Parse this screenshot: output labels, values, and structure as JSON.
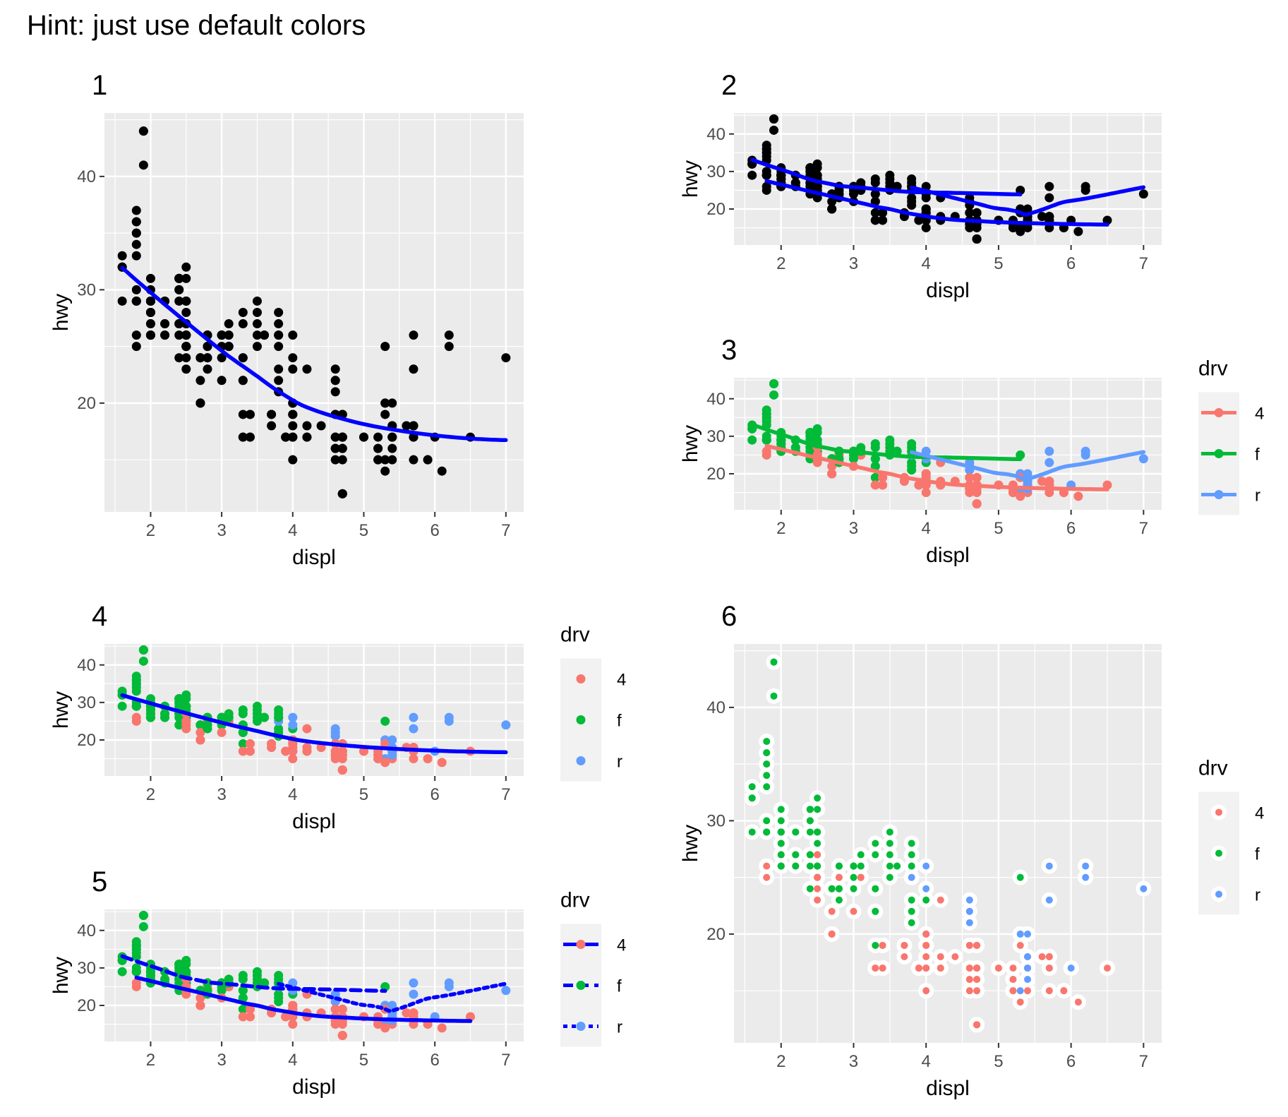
{
  "hint": "Hint: just use default colors",
  "colors": {
    "panel_bg": "#EBEBEB",
    "grid": "#FFFFFF",
    "point_black": "#000000",
    "smooth_blue": "#0000FF",
    "drv_4": "#F8766D",
    "drv_f": "#00BA38",
    "drv_r": "#619CFF",
    "axis_text": "#4D4D4D",
    "legend_key_bg": "#F2F2F2"
  },
  "chart_data": [
    {
      "id": "1",
      "type": "scatter",
      "title": "1",
      "xlabel": "displ",
      "ylabel": "hwy",
      "xlim": [
        1.35,
        7.25
      ],
      "ylim": [
        10.4,
        45.6
      ],
      "xticks": [
        2,
        3,
        4,
        5,
        6,
        7
      ],
      "yticks": [
        20,
        30,
        40
      ],
      "point_color": "group",
      "groups": "none",
      "smooth": "single",
      "legend": null
    },
    {
      "id": "2",
      "type": "scatter",
      "title": "2",
      "xlabel": "displ",
      "ylabel": "hwy",
      "xlim": [
        1.35,
        7.25
      ],
      "ylim": [
        10.4,
        45.6
      ],
      "xticks": [
        2,
        3,
        4,
        5,
        6,
        7
      ],
      "yticks": [
        20,
        30,
        40
      ],
      "point_color": "black",
      "smooth": "by_drv_blue",
      "legend": null
    },
    {
      "id": "3",
      "type": "scatter",
      "title": "3",
      "xlabel": "displ",
      "ylabel": "hwy",
      "xlim": [
        1.35,
        7.25
      ],
      "ylim": [
        10.4,
        45.6
      ],
      "xticks": [
        2,
        3,
        4,
        5,
        6,
        7
      ],
      "yticks": [
        20,
        30,
        40
      ],
      "point_color": "drv",
      "smooth": "by_drv_color",
      "legend": {
        "title": "drv",
        "keys": [
          "4",
          "f",
          "r"
        ],
        "style": "point_line"
      }
    },
    {
      "id": "4",
      "type": "scatter",
      "title": "4",
      "xlabel": "displ",
      "ylabel": "hwy",
      "xlim": [
        1.35,
        7.25
      ],
      "ylim": [
        10.4,
        45.6
      ],
      "xticks": [
        2,
        3,
        4,
        5,
        6,
        7
      ],
      "yticks": [
        20,
        30,
        40
      ],
      "point_color": "drv",
      "smooth": "single",
      "legend": {
        "title": "drv",
        "keys": [
          "4",
          "f",
          "r"
        ],
        "style": "point"
      }
    },
    {
      "id": "5",
      "type": "scatter",
      "title": "5",
      "xlabel": "displ",
      "ylabel": "hwy",
      "xlim": [
        1.35,
        7.25
      ],
      "ylim": [
        10.4,
        45.6
      ],
      "xticks": [
        2,
        3,
        4,
        5,
        6,
        7
      ],
      "yticks": [
        20,
        30,
        40
      ],
      "point_color": "drv",
      "smooth": "by_drv_linetype",
      "legend": {
        "title": "drv",
        "keys": [
          "4",
          "f",
          "r"
        ],
        "style": "linetype"
      }
    },
    {
      "id": "6",
      "type": "scatter",
      "title": "6",
      "xlabel": "displ",
      "ylabel": "hwy",
      "xlim": [
        1.35,
        7.25
      ],
      "ylim": [
        10.4,
        45.6
      ],
      "xticks": [
        2,
        3,
        4,
        5,
        6,
        7
      ],
      "yticks": [
        20,
        30,
        40
      ],
      "point_color": "drv_white_ring",
      "smooth": "none",
      "legend": {
        "title": "drv",
        "keys": [
          "4",
          "f",
          "r"
        ],
        "style": "ring"
      }
    }
  ],
  "points": [
    {
      "x": 1.8,
      "y": 29,
      "drv": "f"
    },
    {
      "x": 1.8,
      "y": 29,
      "drv": "f"
    },
    {
      "x": 2.0,
      "y": 31,
      "drv": "f"
    },
    {
      "x": 2.0,
      "y": 30,
      "drv": "f"
    },
    {
      "x": 2.8,
      "y": 26,
      "drv": "f"
    },
    {
      "x": 2.8,
      "y": 26,
      "drv": "f"
    },
    {
      "x": 3.1,
      "y": 27,
      "drv": "f"
    },
    {
      "x": 1.8,
      "y": 26,
      "drv": "4"
    },
    {
      "x": 1.8,
      "y": 25,
      "drv": "4"
    },
    {
      "x": 2.0,
      "y": 28,
      "drv": "4"
    },
    {
      "x": 2.0,
      "y": 27,
      "drv": "4"
    },
    {
      "x": 2.8,
      "y": 25,
      "drv": "4"
    },
    {
      "x": 2.8,
      "y": 25,
      "drv": "4"
    },
    {
      "x": 3.1,
      "y": 25,
      "drv": "4"
    },
    {
      "x": 3.1,
      "y": 25,
      "drv": "4"
    },
    {
      "x": 2.8,
      "y": 24,
      "drv": "4"
    },
    {
      "x": 3.1,
      "y": 25,
      "drv": "4"
    },
    {
      "x": 4.2,
      "y": 23,
      "drv": "4"
    },
    {
      "x": 5.3,
      "y": 20,
      "drv": "r"
    },
    {
      "x": 5.3,
      "y": 15,
      "drv": "r"
    },
    {
      "x": 5.3,
      "y": 20,
      "drv": "r"
    },
    {
      "x": 5.7,
      "y": 17,
      "drv": "r"
    },
    {
      "x": 6.0,
      "y": 17,
      "drv": "r"
    },
    {
      "x": 5.7,
      "y": 26,
      "drv": "r"
    },
    {
      "x": 5.7,
      "y": 23,
      "drv": "r"
    },
    {
      "x": 6.2,
      "y": 26,
      "drv": "r"
    },
    {
      "x": 6.2,
      "y": 25,
      "drv": "r"
    },
    {
      "x": 7.0,
      "y": 24,
      "drv": "r"
    },
    {
      "x": 5.3,
      "y": 19,
      "drv": "4"
    },
    {
      "x": 5.3,
      "y": 14,
      "drv": "4"
    },
    {
      "x": 5.7,
      "y": 15,
      "drv": "4"
    },
    {
      "x": 6.5,
      "y": 17,
      "drv": "4"
    },
    {
      "x": 2.4,
      "y": 27,
      "drv": "f"
    },
    {
      "x": 2.4,
      "y": 30,
      "drv": "f"
    },
    {
      "x": 3.1,
      "y": 26,
      "drv": "f"
    },
    {
      "x": 3.5,
      "y": 29,
      "drv": "f"
    },
    {
      "x": 3.6,
      "y": 26,
      "drv": "f"
    },
    {
      "x": 2.4,
      "y": 24,
      "drv": "f"
    },
    {
      "x": 3.0,
      "y": 24,
      "drv": "f"
    },
    {
      "x": 3.3,
      "y": 22,
      "drv": "f"
    },
    {
      "x": 3.3,
      "y": 24,
      "drv": "f"
    },
    {
      "x": 3.3,
      "y": 24,
      "drv": "f"
    },
    {
      "x": 3.3,
      "y": 22,
      "drv": "f"
    },
    {
      "x": 3.3,
      "y": 19,
      "drv": "f"
    },
    {
      "x": 3.8,
      "y": 22,
      "drv": "f"
    },
    {
      "x": 3.8,
      "y": 21,
      "drv": "f"
    },
    {
      "x": 3.8,
      "y": 23,
      "drv": "f"
    },
    {
      "x": 4.0,
      "y": 23,
      "drv": "f"
    },
    {
      "x": 3.7,
      "y": 19,
      "drv": "4"
    },
    {
      "x": 3.7,
      "y": 18,
      "drv": "4"
    },
    {
      "x": 3.9,
      "y": 17,
      "drv": "4"
    },
    {
      "x": 3.9,
      "y": 17,
      "drv": "4"
    },
    {
      "x": 4.7,
      "y": 19,
      "drv": "4"
    },
    {
      "x": 4.7,
      "y": 19,
      "drv": "4"
    },
    {
      "x": 4.7,
      "y": 12,
      "drv": "4"
    },
    {
      "x": 5.2,
      "y": 17,
      "drv": "4"
    },
    {
      "x": 5.2,
      "y": 15,
      "drv": "4"
    },
    {
      "x": 3.9,
      "y": 17,
      "drv": "4"
    },
    {
      "x": 4.7,
      "y": 17,
      "drv": "4"
    },
    {
      "x": 4.7,
      "y": 12,
      "drv": "4"
    },
    {
      "x": 4.7,
      "y": 17,
      "drv": "4"
    },
    {
      "x": 5.2,
      "y": 16,
      "drv": "4"
    },
    {
      "x": 5.7,
      "y": 18,
      "drv": "4"
    },
    {
      "x": 5.9,
      "y": 15,
      "drv": "4"
    },
    {
      "x": 4.7,
      "y": 16,
      "drv": "4"
    },
    {
      "x": 4.7,
      "y": 12,
      "drv": "4"
    },
    {
      "x": 4.7,
      "y": 17,
      "drv": "4"
    },
    {
      "x": 4.7,
      "y": 17,
      "drv": "4"
    },
    {
      "x": 4.7,
      "y": 16,
      "drv": "4"
    },
    {
      "x": 4.7,
      "y": 12,
      "drv": "4"
    },
    {
      "x": 5.2,
      "y": 15,
      "drv": "4"
    },
    {
      "x": 5.2,
      "y": 16,
      "drv": "4"
    },
    {
      "x": 5.7,
      "y": 17,
      "drv": "4"
    },
    {
      "x": 5.9,
      "y": 15,
      "drv": "4"
    },
    {
      "x": 4.6,
      "y": 17,
      "drv": "4"
    },
    {
      "x": 5.4,
      "y": 17,
      "drv": "4"
    },
    {
      "x": 5.4,
      "y": 18,
      "drv": "4"
    },
    {
      "x": 4.0,
      "y": 17,
      "drv": "4"
    },
    {
      "x": 4.0,
      "y": 19,
      "drv": "4"
    },
    {
      "x": 4.0,
      "y": 17,
      "drv": "4"
    },
    {
      "x": 4.0,
      "y": 19,
      "drv": "4"
    },
    {
      "x": 4.6,
      "y": 19,
      "drv": "4"
    },
    {
      "x": 5.0,
      "y": 17,
      "drv": "4"
    },
    {
      "x": 4.2,
      "y": 17,
      "drv": "4"
    },
    {
      "x": 4.2,
      "y": 17,
      "drv": "4"
    },
    {
      "x": 4.6,
      "y": 16,
      "drv": "4"
    },
    {
      "x": 4.6,
      "y": 16,
      "drv": "4"
    },
    {
      "x": 4.6,
      "y": 17,
      "drv": "4"
    },
    {
      "x": 5.4,
      "y": 15,
      "drv": "4"
    },
    {
      "x": 5.4,
      "y": 17,
      "drv": "4"
    },
    {
      "x": 3.8,
      "y": 26,
      "drv": "r"
    },
    {
      "x": 3.8,
      "y": 25,
      "drv": "r"
    },
    {
      "x": 4.0,
      "y": 26,
      "drv": "r"
    },
    {
      "x": 4.0,
      "y": 24,
      "drv": "r"
    },
    {
      "x": 4.6,
      "y": 21,
      "drv": "r"
    },
    {
      "x": 4.6,
      "y": 22,
      "drv": "r"
    },
    {
      "x": 4.6,
      "y": 23,
      "drv": "r"
    },
    {
      "x": 4.6,
      "y": 22,
      "drv": "r"
    },
    {
      "x": 5.4,
      "y": 20,
      "drv": "r"
    },
    {
      "x": 1.6,
      "y": 33,
      "drv": "f"
    },
    {
      "x": 1.6,
      "y": 32,
      "drv": "f"
    },
    {
      "x": 1.6,
      "y": 32,
      "drv": "f"
    },
    {
      "x": 1.6,
      "y": 29,
      "drv": "f"
    },
    {
      "x": 1.6,
      "y": 32,
      "drv": "f"
    },
    {
      "x": 1.8,
      "y": 34,
      "drv": "f"
    },
    {
      "x": 1.8,
      "y": 36,
      "drv": "f"
    },
    {
      "x": 1.8,
      "y": 36,
      "drv": "f"
    },
    {
      "x": 2.0,
      "y": 29,
      "drv": "f"
    },
    {
      "x": 2.4,
      "y": 26,
      "drv": "f"
    },
    {
      "x": 2.4,
      "y": 27,
      "drv": "f"
    },
    {
      "x": 2.4,
      "y": 30,
      "drv": "f"
    },
    {
      "x": 2.4,
      "y": 31,
      "drv": "f"
    },
    {
      "x": 2.5,
      "y": 26,
      "drv": "f"
    },
    {
      "x": 2.5,
      "y": 26,
      "drv": "f"
    },
    {
      "x": 3.3,
      "y": 28,
      "drv": "f"
    },
    {
      "x": 2.0,
      "y": 26,
      "drv": "f"
    },
    {
      "x": 2.0,
      "y": 29,
      "drv": "f"
    },
    {
      "x": 2.0,
      "y": 28,
      "drv": "f"
    },
    {
      "x": 2.0,
      "y": 27,
      "drv": "f"
    },
    {
      "x": 2.7,
      "y": 24,
      "drv": "f"
    },
    {
      "x": 2.7,
      "y": 24,
      "drv": "f"
    },
    {
      "x": 2.7,
      "y": 24,
      "drv": "f"
    },
    {
      "x": 3.0,
      "y": 22,
      "drv": "4"
    },
    {
      "x": 3.7,
      "y": 19,
      "drv": "4"
    },
    {
      "x": 4.0,
      "y": 20,
      "drv": "4"
    },
    {
      "x": 4.7,
      "y": 17,
      "drv": "4"
    },
    {
      "x": 4.7,
      "y": 12,
      "drv": "4"
    },
    {
      "x": 4.7,
      "y": 19,
      "drv": "4"
    },
    {
      "x": 5.7,
      "y": 18,
      "drv": "4"
    },
    {
      "x": 6.1,
      "y": 14,
      "drv": "4"
    },
    {
      "x": 4.0,
      "y": 15,
      "drv": "4"
    },
    {
      "x": 4.2,
      "y": 18,
      "drv": "4"
    },
    {
      "x": 4.4,
      "y": 18,
      "drv": "4"
    },
    {
      "x": 4.6,
      "y": 15,
      "drv": "4"
    },
    {
      "x": 5.4,
      "y": 17,
      "drv": "r"
    },
    {
      "x": 5.4,
      "y": 16,
      "drv": "r"
    },
    {
      "x": 5.4,
      "y": 18,
      "drv": "r"
    },
    {
      "x": 4.0,
      "y": 17,
      "drv": "4"
    },
    {
      "x": 4.0,
      "y": 19,
      "drv": "4"
    },
    {
      "x": 4.6,
      "y": 19,
      "drv": "4"
    },
    {
      "x": 5.0,
      "y": 17,
      "drv": "4"
    },
    {
      "x": 2.4,
      "y": 29,
      "drv": "f"
    },
    {
      "x": 2.4,
      "y": 27,
      "drv": "f"
    },
    {
      "x": 2.5,
      "y": 31,
      "drv": "f"
    },
    {
      "x": 2.5,
      "y": 32,
      "drv": "f"
    },
    {
      "x": 3.5,
      "y": 27,
      "drv": "f"
    },
    {
      "x": 3.5,
      "y": 26,
      "drv": "f"
    },
    {
      "x": 3.0,
      "y": 26,
      "drv": "f"
    },
    {
      "x": 3.0,
      "y": 25,
      "drv": "f"
    },
    {
      "x": 3.5,
      "y": 25,
      "drv": "f"
    },
    {
      "x": 3.3,
      "y": 17,
      "drv": "4"
    },
    {
      "x": 3.3,
      "y": 17,
      "drv": "4"
    },
    {
      "x": 4.0,
      "y": 20,
      "drv": "4"
    },
    {
      "x": 5.6,
      "y": 18,
      "drv": "4"
    },
    {
      "x": 3.1,
      "y": 26,
      "drv": "f"
    },
    {
      "x": 3.8,
      "y": 26,
      "drv": "f"
    },
    {
      "x": 3.8,
      "y": 27,
      "drv": "f"
    },
    {
      "x": 3.8,
      "y": 28,
      "drv": "f"
    },
    {
      "x": 5.3,
      "y": 25,
      "drv": "f"
    },
    {
      "x": 2.5,
      "y": 25,
      "drv": "4"
    },
    {
      "x": 2.5,
      "y": 24,
      "drv": "4"
    },
    {
      "x": 2.5,
      "y": 27,
      "drv": "4"
    },
    {
      "x": 2.5,
      "y": 25,
      "drv": "4"
    },
    {
      "x": 2.5,
      "y": 26,
      "drv": "4"
    },
    {
      "x": 2.5,
      "y": 23,
      "drv": "4"
    },
    {
      "x": 2.2,
      "y": 26,
      "drv": "f"
    },
    {
      "x": 2.2,
      "y": 26,
      "drv": "f"
    },
    {
      "x": 2.5,
      "y": 26,
      "drv": "f"
    },
    {
      "x": 2.5,
      "y": 26,
      "drv": "f"
    },
    {
      "x": 2.5,
      "y": 25,
      "drv": "4"
    },
    {
      "x": 2.5,
      "y": 27,
      "drv": "4"
    },
    {
      "x": 2.5,
      "y": 25,
      "drv": "4"
    },
    {
      "x": 2.5,
      "y": 27,
      "drv": "4"
    },
    {
      "x": 2.7,
      "y": 20,
      "drv": "4"
    },
    {
      "x": 2.7,
      "y": 20,
      "drv": "4"
    },
    {
      "x": 3.4,
      "y": 19,
      "drv": "4"
    },
    {
      "x": 3.4,
      "y": 17,
      "drv": "4"
    },
    {
      "x": 4.0,
      "y": 20,
      "drv": "4"
    },
    {
      "x": 4.7,
      "y": 17,
      "drv": "4"
    },
    {
      "x": 2.2,
      "y": 29,
      "drv": "f"
    },
    {
      "x": 2.2,
      "y": 27,
      "drv": "f"
    },
    {
      "x": 2.4,
      "y": 31,
      "drv": "f"
    },
    {
      "x": 2.4,
      "y": 31,
      "drv": "f"
    },
    {
      "x": 3.0,
      "y": 26,
      "drv": "f"
    },
    {
      "x": 3.0,
      "y": 26,
      "drv": "f"
    },
    {
      "x": 3.5,
      "y": 28,
      "drv": "f"
    },
    {
      "x": 2.2,
      "y": 27,
      "drv": "f"
    },
    {
      "x": 2.2,
      "y": 29,
      "drv": "f"
    },
    {
      "x": 2.4,
      "y": 31,
      "drv": "f"
    },
    {
      "x": 2.4,
      "y": 31,
      "drv": "f"
    },
    {
      "x": 3.0,
      "y": 26,
      "drv": "f"
    },
    {
      "x": 3.0,
      "y": 26,
      "drv": "f"
    },
    {
      "x": 3.3,
      "y": 27,
      "drv": "f"
    },
    {
      "x": 1.8,
      "y": 30,
      "drv": "f"
    },
    {
      "x": 1.8,
      "y": 33,
      "drv": "f"
    },
    {
      "x": 1.8,
      "y": 35,
      "drv": "f"
    },
    {
      "x": 1.8,
      "y": 37,
      "drv": "f"
    },
    {
      "x": 1.8,
      "y": 35,
      "drv": "f"
    },
    {
      "x": 4.7,
      "y": 15,
      "drv": "4"
    },
    {
      "x": 5.7,
      "y": 18,
      "drv": "4"
    },
    {
      "x": 2.7,
      "y": 20,
      "drv": "4"
    },
    {
      "x": 2.7,
      "y": 20,
      "drv": "4"
    },
    {
      "x": 2.7,
      "y": 22,
      "drv": "4"
    },
    {
      "x": 3.4,
      "y": 17,
      "drv": "4"
    },
    {
      "x": 3.4,
      "y": 19,
      "drv": "4"
    },
    {
      "x": 4.0,
      "y": 18,
      "drv": "4"
    },
    {
      "x": 4.0,
      "y": 20,
      "drv": "4"
    },
    {
      "x": 2.0,
      "y": 29,
      "drv": "f"
    },
    {
      "x": 2.0,
      "y": 26,
      "drv": "f"
    },
    {
      "x": 2.0,
      "y": 29,
      "drv": "f"
    },
    {
      "x": 2.0,
      "y": 29,
      "drv": "f"
    },
    {
      "x": 2.8,
      "y": 24,
      "drv": "f"
    },
    {
      "x": 1.9,
      "y": 44,
      "drv": "f"
    },
    {
      "x": 2.0,
      "y": 29,
      "drv": "f"
    },
    {
      "x": 2.0,
      "y": 26,
      "drv": "f"
    },
    {
      "x": 2.0,
      "y": 29,
      "drv": "f"
    },
    {
      "x": 2.0,
      "y": 29,
      "drv": "f"
    },
    {
      "x": 2.5,
      "y": 29,
      "drv": "f"
    },
    {
      "x": 2.5,
      "y": 29,
      "drv": "f"
    },
    {
      "x": 2.8,
      "y": 23,
      "drv": "f"
    },
    {
      "x": 2.8,
      "y": 24,
      "drv": "f"
    },
    {
      "x": 1.9,
      "y": 44,
      "drv": "f"
    },
    {
      "x": 1.9,
      "y": 41,
      "drv": "f"
    },
    {
      "x": 2.0,
      "y": 29,
      "drv": "f"
    },
    {
      "x": 2.0,
      "y": 26,
      "drv": "f"
    },
    {
      "x": 2.5,
      "y": 28,
      "drv": "f"
    },
    {
      "x": 2.5,
      "y": 29,
      "drv": "f"
    },
    {
      "x": 1.8,
      "y": 29,
      "drv": "f"
    },
    {
      "x": 1.8,
      "y": 29,
      "drv": "f"
    },
    {
      "x": 2.0,
      "y": 28,
      "drv": "f"
    },
    {
      "x": 2.0,
      "y": 29,
      "drv": "f"
    },
    {
      "x": 2.8,
      "y": 26,
      "drv": "f"
    },
    {
      "x": 2.8,
      "y": 26,
      "drv": "f"
    },
    {
      "x": 3.6,
      "y": 26,
      "drv": "f"
    }
  ]
}
